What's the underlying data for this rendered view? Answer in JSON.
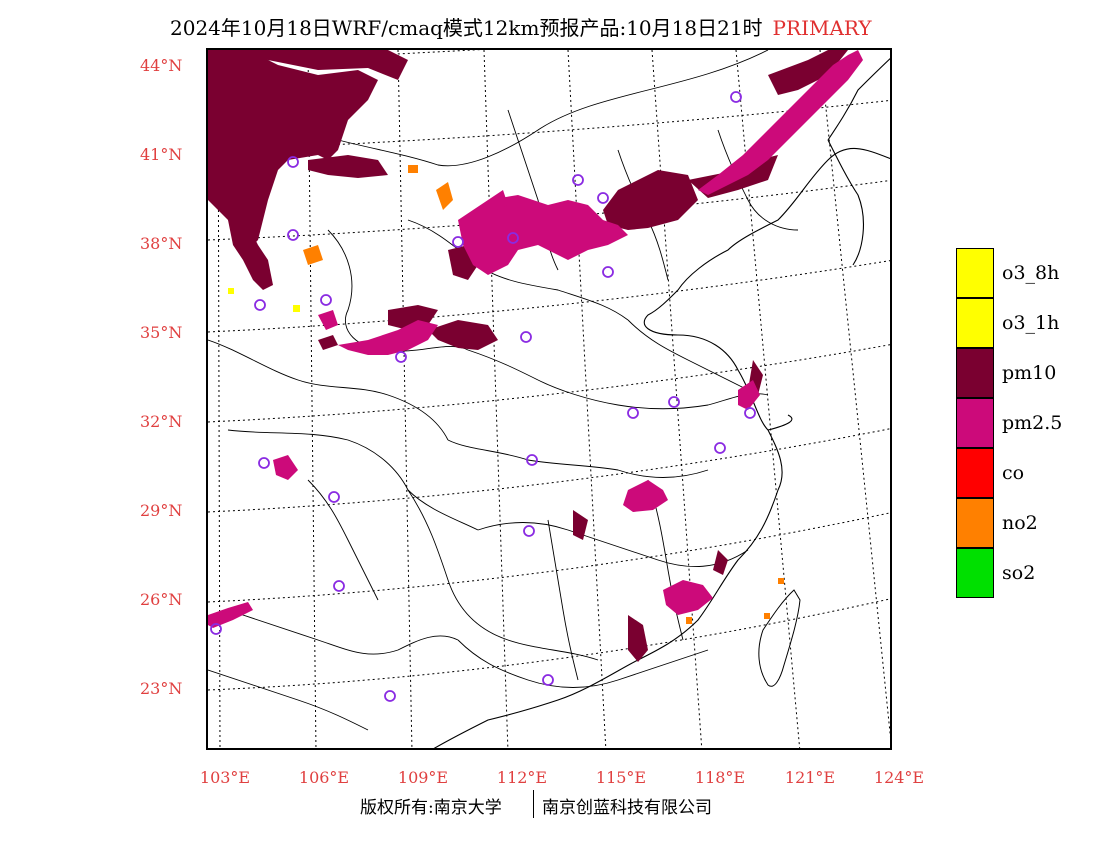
{
  "title": {
    "text": "2024年10月18日WRF/cmaq模式12km预报产品:10月18日21时",
    "tag": "PRIMARY"
  },
  "map": {
    "lat_labels": [
      "44°N",
      "41°N",
      "38°N",
      "35°N",
      "32°N",
      "29°N",
      "26°N",
      "23°N"
    ],
    "lon_labels": [
      "103°E",
      "106°E",
      "109°E",
      "112°E",
      "115°E",
      "118°E",
      "121°E",
      "124°E"
    ],
    "colors": {
      "pm10": "#7a0030",
      "pm25": "#cc0a7a",
      "no2": "#ff8000",
      "o3": "#ffff00",
      "city_marker": "#8a2be2"
    }
  },
  "legend": {
    "items": [
      {
        "label": "o3_8h",
        "color": "#ffff00"
      },
      {
        "label": "o3_1h",
        "color": "#ffff00"
      },
      {
        "label": "pm10",
        "color": "#7a0030"
      },
      {
        "label": "pm2.5",
        "color": "#cc0a7a"
      },
      {
        "label": "co",
        "color": "#ff0000"
      },
      {
        "label": "no2",
        "color": "#ff8000"
      },
      {
        "label": "so2",
        "color": "#00e000"
      }
    ]
  },
  "footer": {
    "copyright": "版权所有:南京大学",
    "company": "南京创蓝科技有限公司"
  }
}
